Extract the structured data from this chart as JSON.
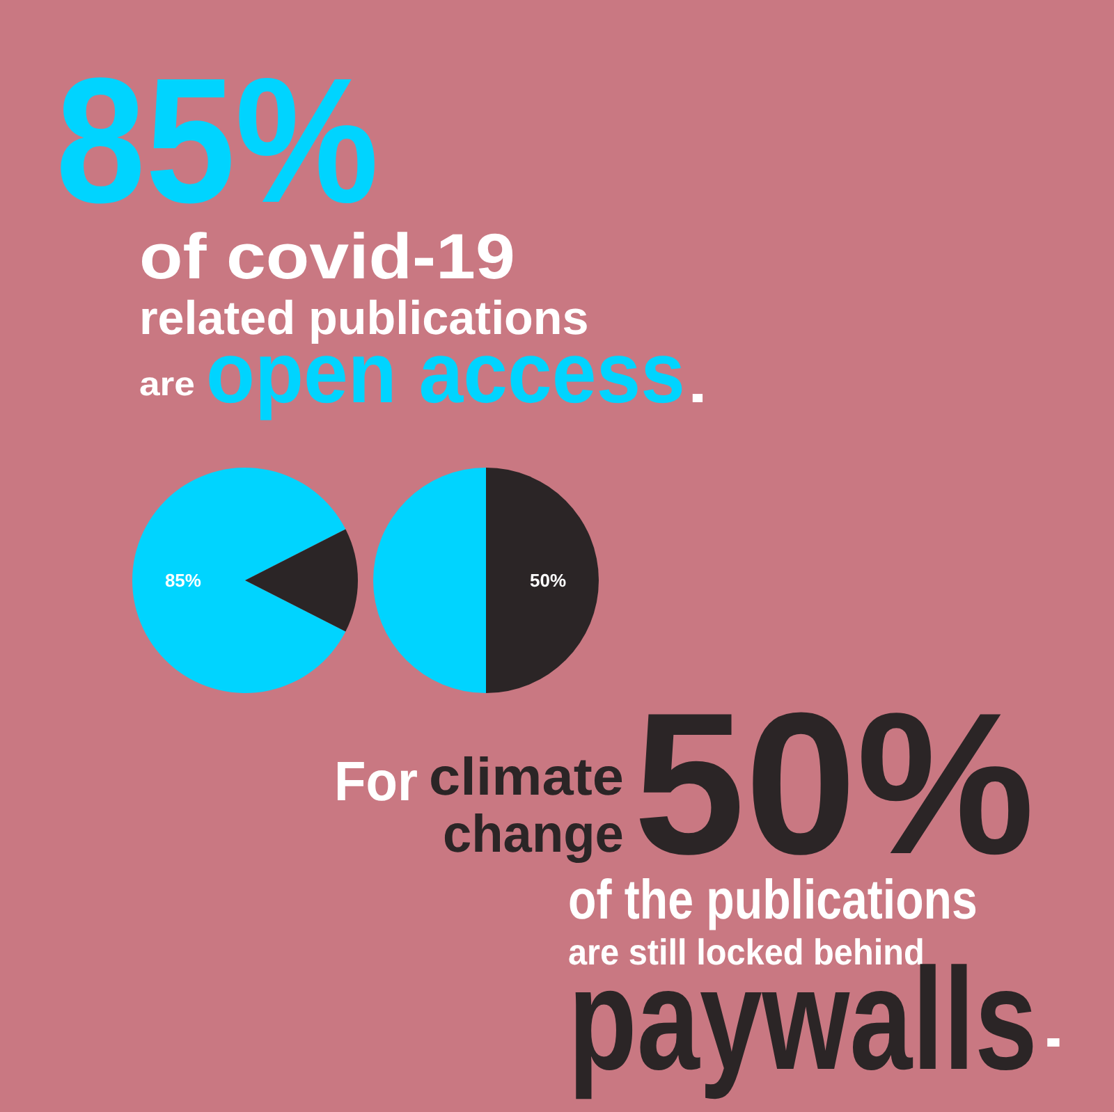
{
  "chart_data": [
    {
      "type": "pie",
      "categories": [
        null,
        null
      ],
      "values": [
        85,
        15
      ],
      "colors": [
        "#00d4ff",
        "#2b2526"
      ],
      "value_labels": [
        "85%",
        null
      ],
      "title": "85%",
      "annotations": [
        "of covid-19",
        "related publications",
        "are",
        "open access",
        "."
      ]
    },
    {
      "type": "pie",
      "categories": [
        null,
        null
      ],
      "values": [
        50,
        50
      ],
      "colors": [
        "#00d4ff",
        "#2b2526"
      ],
      "value_labels": [
        null,
        "50%"
      ],
      "annotations": [
        "For",
        "climate",
        "change",
        "50%",
        "of the publications",
        "are still locked behind",
        "paywalls",
        "."
      ]
    }
  ]
}
